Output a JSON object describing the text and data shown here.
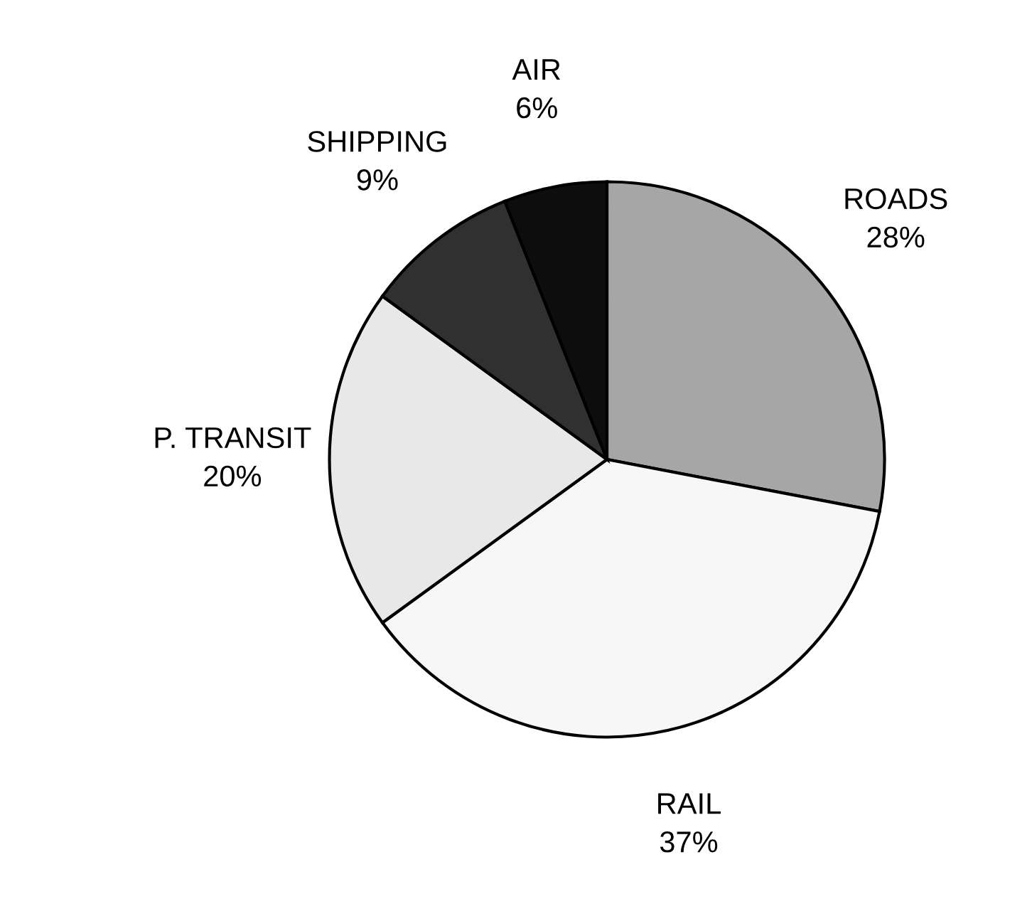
{
  "chart_data": {
    "type": "pie",
    "categories": [
      "ROADS",
      "RAIL",
      "P. TRANSIT",
      "SHIPPING",
      "AIR"
    ],
    "values": [
      28,
      37,
      20,
      9,
      6
    ],
    "value_labels": [
      "28%",
      "37%",
      "20%",
      "9%",
      "6%"
    ],
    "colors": [
      "#a6a6a6",
      "#f7f7f7",
      "#e8e8e8",
      "#303030",
      "#0d0d0d"
    ]
  }
}
